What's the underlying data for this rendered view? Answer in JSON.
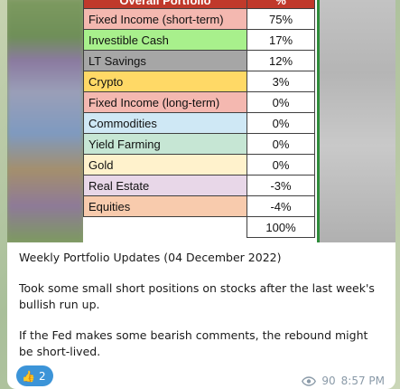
{
  "table": {
    "header": {
      "category": "Overall Portfolio",
      "percent": "%"
    },
    "rows": [
      {
        "label": "Fixed Income (short-term)",
        "value": "75%",
        "color": "#f4b8b0"
      },
      {
        "label": "Investible Cash",
        "value": "17%",
        "color": "#a8f08c"
      },
      {
        "label": "LT Savings",
        "value": "12%",
        "color": "#a6a6a6"
      },
      {
        "label": "Crypto",
        "value": "3%",
        "color": "#ffd966"
      },
      {
        "label": "Fixed Income (long-term)",
        "value": "0%",
        "color": "#f4b8b0"
      },
      {
        "label": "Commodities",
        "value": "0%",
        "color": "#cfe8f5"
      },
      {
        "label": "Yield Farming",
        "value": "0%",
        "color": "#c6e6d4"
      },
      {
        "label": "Gold",
        "value": "0%",
        "color": "#fff2cc"
      },
      {
        "label": "Real Estate",
        "value": "-3%",
        "color": "#e8d7e8"
      },
      {
        "label": "Equities",
        "value": "-4%",
        "color": "#f8cbad"
      }
    ],
    "total": "100%"
  },
  "message": {
    "title_line": "Weekly Portfolio Updates (04 December 2022)",
    "paragraph_1": "Took some small short positions on stocks after the last week's bullish run up.",
    "paragraph_2": "If the Fed makes some bearish comments, the rebound might be short-lived."
  },
  "reaction": {
    "emoji": "👍",
    "count": "2"
  },
  "meta": {
    "views": "90",
    "time": "8:57 PM",
    "icon": "eye-icon"
  }
}
